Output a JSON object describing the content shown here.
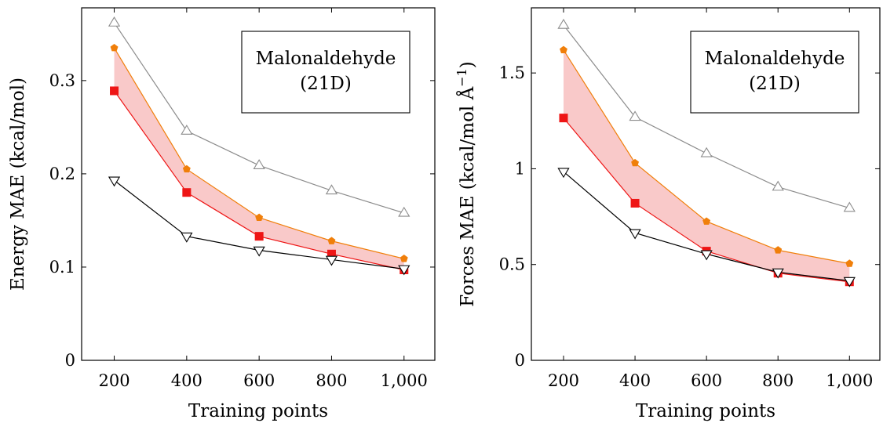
{
  "chart_data": [
    {
      "type": "line",
      "title": "",
      "xlabel": "Training points",
      "ylabel": "Energy MAE (kcal/mol)",
      "x": [
        200,
        400,
        600,
        800,
        1000
      ],
      "x_tick_labels": [
        "200",
        "400",
        "600",
        "800",
        "1,000"
      ],
      "xlim": [
        110,
        1085
      ],
      "ylim": [
        0,
        0.378
      ],
      "y_ticks": [
        0,
        0.1,
        0.2,
        0.3
      ],
      "y_tick_labels": [
        "0",
        "0.1",
        "0.2",
        "0.3"
      ],
      "annotation": [
        "Malonaldehyde",
        "(21D)"
      ],
      "annotation_placement": "top-right",
      "grid": false,
      "shaded_band": {
        "between": [
          "s_orange",
          "s_red"
        ],
        "color": "#f9c9c9"
      },
      "series": [
        {
          "key": "s_gray",
          "marker": "triangle-up-open",
          "color": "#8c8c8c",
          "values": [
            0.362,
            0.246,
            0.209,
            0.182,
            0.158
          ]
        },
        {
          "key": "s_orange",
          "marker": "pentagon-filled",
          "color": "#f07f0a",
          "values": [
            0.335,
            0.205,
            0.153,
            0.128,
            0.109
          ]
        },
        {
          "key": "s_red",
          "marker": "square-filled",
          "color": "#ee1515",
          "values": [
            0.289,
            0.18,
            0.133,
            0.114,
            0.097
          ]
        },
        {
          "key": "s_black",
          "marker": "triangle-down-open",
          "color": "#000000",
          "values": [
            0.193,
            0.133,
            0.118,
            0.108,
            0.098
          ]
        }
      ]
    },
    {
      "type": "line",
      "title": "",
      "xlabel": "Training points",
      "ylabel": "Forces MAE (kcal/mol Å⁻¹)",
      "ylabel_main": "Forces MAE (kcal/mol Å",
      "ylabel_sup": "−1",
      "ylabel_end": ")",
      "x": [
        200,
        400,
        600,
        800,
        1000
      ],
      "x_tick_labels": [
        "200",
        "400",
        "600",
        "800",
        "1,000"
      ],
      "xlim": [
        110,
        1085
      ],
      "ylim": [
        0,
        1.84
      ],
      "y_ticks": [
        0,
        0.5,
        1,
        1.5
      ],
      "y_tick_labels": [
        "0",
        "0.5",
        "1",
        "1.5"
      ],
      "annotation": [
        "Malonaldehyde",
        "(21D)"
      ],
      "annotation_placement": "top-right",
      "grid": false,
      "shaded_band": {
        "between": [
          "s_orange",
          "s_red"
        ],
        "color": "#f9c9c9"
      },
      "series": [
        {
          "key": "s_gray",
          "marker": "triangle-up-open",
          "color": "#8c8c8c",
          "values": [
            1.75,
            1.27,
            1.08,
            0.905,
            0.795
          ]
        },
        {
          "key": "s_orange",
          "marker": "pentagon-filled",
          "color": "#f07f0a",
          "values": [
            1.62,
            1.03,
            0.725,
            0.575,
            0.505
          ]
        },
        {
          "key": "s_red",
          "marker": "square-filled",
          "color": "#ee1515",
          "values": [
            1.265,
            0.82,
            0.57,
            0.455,
            0.41
          ]
        },
        {
          "key": "s_black",
          "marker": "triangle-down-open",
          "color": "#000000",
          "values": [
            0.985,
            0.665,
            0.555,
            0.46,
            0.415
          ]
        }
      ]
    }
  ]
}
